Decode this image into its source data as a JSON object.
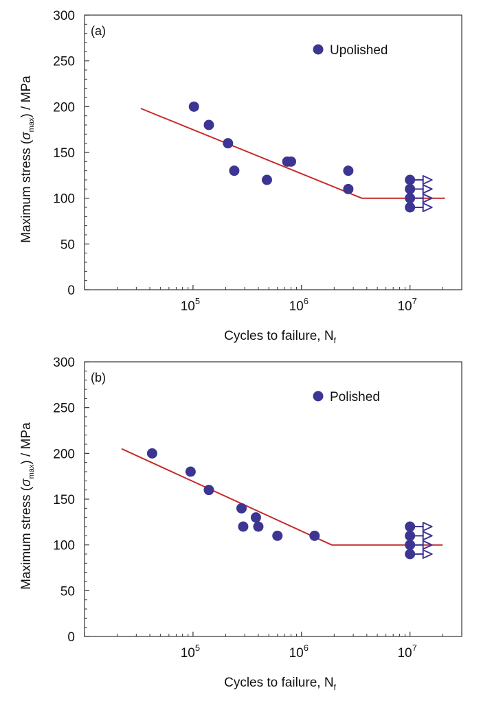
{
  "chart_data": [
    {
      "type": "scatter",
      "panel_label": "(a)",
      "xlabel": "Cycles to failure, N",
      "xlabel_sub": "f",
      "ylabel_main": "Maximum stress (",
      "ylabel_sigma": "σ",
      "ylabel_sub": "max",
      "ylabel_tail": ") / MPa",
      "x_scale": "log",
      "xlim": [
        10000,
        30000000
      ],
      "ylim": [
        0,
        300
      ],
      "yticks": [
        0,
        50,
        100,
        150,
        200,
        250,
        300
      ],
      "xtick_labels": [
        {
          "value": 100000,
          "base": "10",
          "exp": "5"
        },
        {
          "value": 1000000,
          "base": "10",
          "exp": "6"
        },
        {
          "value": 10000000,
          "base": "10",
          "exp": "7"
        }
      ],
      "grid": false,
      "legend_position": "top-right",
      "series": [
        {
          "name": "Upolished",
          "color": "#3d3592",
          "points": [
            {
              "x": 102000,
              "y": 200
            },
            {
              "x": 140000,
              "y": 180
            },
            {
              "x": 210000,
              "y": 160
            },
            {
              "x": 240000,
              "y": 130
            },
            {
              "x": 480000,
              "y": 120
            },
            {
              "x": 740000,
              "y": 140
            },
            {
              "x": 800000,
              "y": 140
            },
            {
              "x": 2700000,
              "y": 130
            },
            {
              "x": 2700000,
              "y": 110
            }
          ],
          "runouts": [
            {
              "x": 10000000,
              "y": 120
            },
            {
              "x": 10000000,
              "y": 110
            },
            {
              "x": 10000000,
              "y": 100
            },
            {
              "x": 10000000,
              "y": 90
            }
          ]
        }
      ],
      "fit_line": {
        "color": "#c62a2a",
        "points": [
          {
            "x": 33000,
            "y": 198
          },
          {
            "x": 3600000,
            "y": 100
          },
          {
            "x": 21000000,
            "y": 100
          }
        ]
      }
    },
    {
      "type": "scatter",
      "panel_label": "(b)",
      "xlabel": "Cycles to failure, N",
      "xlabel_sub": "f",
      "ylabel_main": "Maximum stress (",
      "ylabel_sigma": "σ",
      "ylabel_sub": "max",
      "ylabel_tail": ") / MPa",
      "x_scale": "log",
      "xlim": [
        10000,
        30000000
      ],
      "ylim": [
        0,
        300
      ],
      "yticks": [
        0,
        50,
        100,
        150,
        200,
        250,
        300
      ],
      "xtick_labels": [
        {
          "value": 100000,
          "base": "10",
          "exp": "5"
        },
        {
          "value": 1000000,
          "base": "10",
          "exp": "6"
        },
        {
          "value": 10000000,
          "base": "10",
          "exp": "7"
        }
      ],
      "grid": false,
      "legend_position": "top-right",
      "series": [
        {
          "name": "Polished",
          "color": "#3d3592",
          "points": [
            {
              "x": 42000,
              "y": 200
            },
            {
              "x": 95000,
              "y": 180
            },
            {
              "x": 140000,
              "y": 160
            },
            {
              "x": 280000,
              "y": 140
            },
            {
              "x": 290000,
              "y": 120
            },
            {
              "x": 380000,
              "y": 130
            },
            {
              "x": 400000,
              "y": 120
            },
            {
              "x": 600000,
              "y": 110
            },
            {
              "x": 1320000,
              "y": 110
            }
          ],
          "runouts": [
            {
              "x": 10000000,
              "y": 120
            },
            {
              "x": 10000000,
              "y": 110
            },
            {
              "x": 10000000,
              "y": 100
            },
            {
              "x": 10000000,
              "y": 90
            }
          ]
        }
      ],
      "fit_line": {
        "color": "#c62a2a",
        "points": [
          {
            "x": 22000,
            "y": 205
          },
          {
            "x": 1900000,
            "y": 100
          },
          {
            "x": 20000000,
            "y": 100
          }
        ]
      }
    }
  ]
}
